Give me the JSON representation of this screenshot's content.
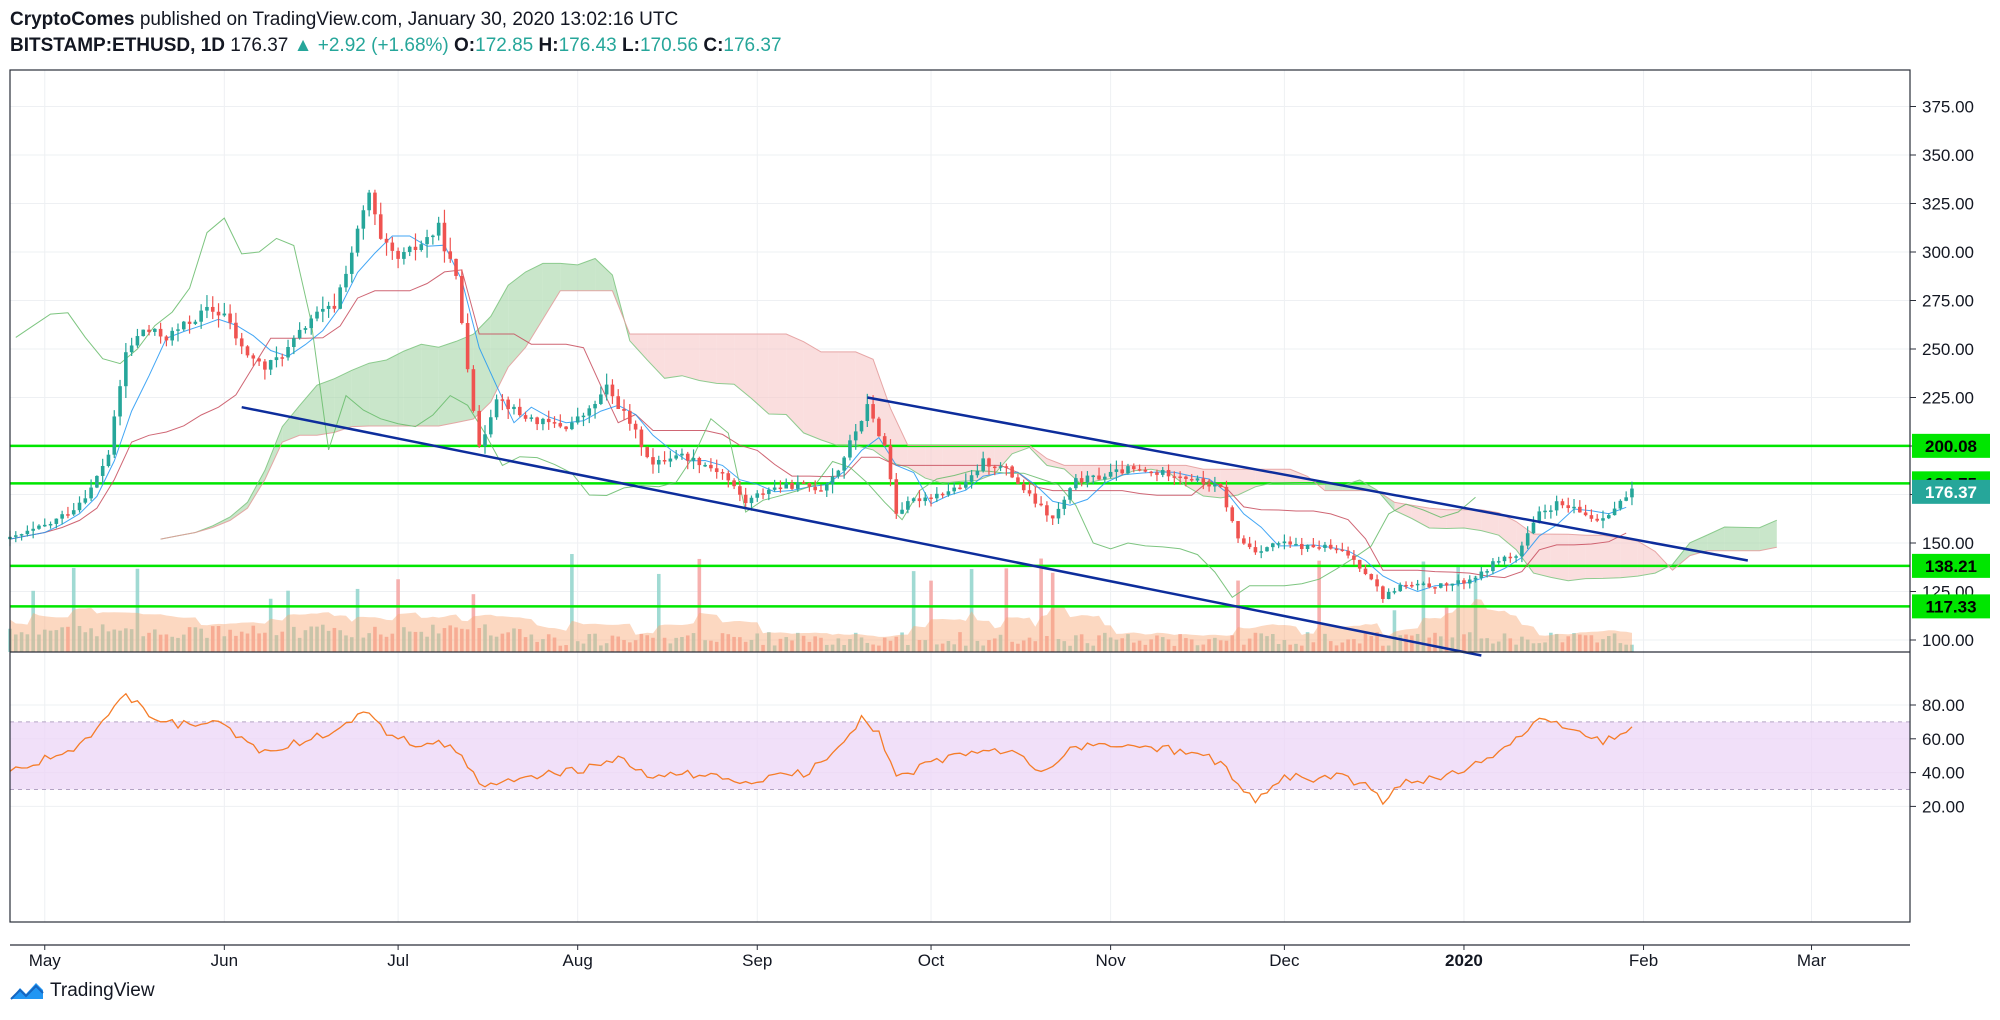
{
  "header": {
    "author": "CryptoComes",
    "published_text": "published on TradingView.com, January 30, 2020 13:02:16 UTC",
    "symbol": "BITSTAMP:ETHUSD, 1D",
    "last": "176.37",
    "change_arrow": "▲",
    "change": "+2.92 (+1.68%)",
    "o_label": "O:",
    "o": "172.85",
    "h_label": "H:",
    "h": "176.43",
    "l_label": "L:",
    "l": "170.56",
    "c_label": "C:",
    "c": "176.37"
  },
  "branding": {
    "logo_text": "TradingView",
    "logo_icon": "tradingview-logo-icon"
  },
  "colors": {
    "up": "#26a69a",
    "down": "#ef5350",
    "level": "#00e600",
    "channel": "#0d2d9c",
    "cloud_up": "#a5d6a7",
    "cloud_down": "#f7c8c8",
    "tenkan": "#2196f3",
    "kijun": "#c74b5c",
    "chikou": "#66bb6a",
    "volume": "#f9a875",
    "rsi": "#f57c28",
    "rsi_band": "#ecd6f7"
  },
  "chart_data": {
    "type": "candlestick",
    "price_axis": {
      "ticks": [
        "375.00",
        "350.00",
        "325.00",
        "300.00",
        "275.00",
        "250.00",
        "225.00",
        "200.00",
        "175.00",
        "150.00",
        "125.00",
        "100.00"
      ],
      "range": [
        85,
        385
      ]
    },
    "rsi_axis": {
      "ticks": [
        "80.00",
        "60.00",
        "40.00",
        "20.00"
      ],
      "range": [
        14,
        92
      ],
      "band": [
        30,
        70
      ]
    },
    "x_axis": {
      "labels": [
        "May",
        "Jun",
        "Jul",
        "Aug",
        "Sep",
        "Oct",
        "Nov",
        "Dec",
        "2020",
        "Feb",
        "Mar"
      ],
      "label_dates": [
        "2019-05-01",
        "2019-06-01",
        "2019-07-01",
        "2019-08-01",
        "2019-09-01",
        "2019-10-01",
        "2019-11-01",
        "2019-12-01",
        "2020-01-01",
        "2020-02-01",
        "2020-03-01"
      ],
      "range": [
        "2019-04-25",
        "2020-03-18"
      ]
    },
    "horizontal_levels": [
      {
        "value": 200.08,
        "label": "200.08"
      },
      {
        "value": 180.75,
        "label": "180.75"
      },
      {
        "value": 138.21,
        "label": "138.21"
      },
      {
        "value": 117.33,
        "label": "117.33"
      }
    ],
    "last_price_tag": {
      "value": 176.37,
      "label": "176.37"
    },
    "trend_lines": [
      {
        "from": [
          "2019-06-04",
          220
        ],
        "to": [
          "2020-01-04",
          92
        ]
      },
      {
        "from": [
          "2019-09-20",
          225
        ],
        "to": [
          "2020-02-19",
          141
        ]
      }
    ],
    "close": [
      [
        "2019-04-25",
        152
      ],
      [
        "2019-05-02",
        160
      ],
      [
        "2019-05-06",
        168
      ],
      [
        "2019-05-09",
        178
      ],
      [
        "2019-05-12",
        196
      ],
      [
        "2019-05-15",
        248
      ],
      [
        "2019-05-18",
        260
      ],
      [
        "2019-05-22",
        256
      ],
      [
        "2019-05-26",
        264
      ],
      [
        "2019-05-29",
        270
      ],
      [
        "2019-06-01",
        268
      ],
      [
        "2019-06-04",
        250
      ],
      [
        "2019-06-08",
        240
      ],
      [
        "2019-06-12",
        250
      ],
      [
        "2019-06-16",
        266
      ],
      [
        "2019-06-20",
        272
      ],
      [
        "2019-06-23",
        300
      ],
      [
        "2019-06-26",
        330
      ],
      [
        "2019-06-28",
        305
      ],
      [
        "2019-07-01",
        296
      ],
      [
        "2019-07-04",
        302
      ],
      [
        "2019-07-08",
        312
      ],
      [
        "2019-07-11",
        286
      ],
      [
        "2019-07-15",
        198
      ],
      [
        "2019-07-18",
        226
      ],
      [
        "2019-07-22",
        216
      ],
      [
        "2019-07-26",
        212
      ],
      [
        "2019-07-30",
        210
      ],
      [
        "2019-08-03",
        218
      ],
      [
        "2019-08-06",
        230
      ],
      [
        "2019-08-10",
        212
      ],
      [
        "2019-08-14",
        190
      ],
      [
        "2019-08-18",
        196
      ],
      [
        "2019-08-22",
        192
      ],
      [
        "2019-08-26",
        186
      ],
      [
        "2019-08-30",
        171
      ],
      [
        "2019-09-03",
        178
      ],
      [
        "2019-09-08",
        180
      ],
      [
        "2019-09-12",
        178
      ],
      [
        "2019-09-15",
        188
      ],
      [
        "2019-09-18",
        208
      ],
      [
        "2019-09-20",
        220
      ],
      [
        "2019-09-23",
        200
      ],
      [
        "2019-09-25",
        166
      ],
      [
        "2019-09-28",
        172
      ],
      [
        "2019-10-03",
        176
      ],
      [
        "2019-10-07",
        180
      ],
      [
        "2019-10-10",
        192
      ],
      [
        "2019-10-14",
        188
      ],
      [
        "2019-10-18",
        174
      ],
      [
        "2019-10-22",
        162
      ],
      [
        "2019-10-26",
        182
      ],
      [
        "2019-10-30",
        184
      ],
      [
        "2019-11-04",
        188
      ],
      [
        "2019-11-08",
        186
      ],
      [
        "2019-11-12",
        186
      ],
      [
        "2019-11-16",
        182
      ],
      [
        "2019-11-20",
        178
      ],
      [
        "2019-11-23",
        152
      ],
      [
        "2019-11-26",
        146
      ],
      [
        "2019-11-30",
        150
      ],
      [
        "2019-12-04",
        148
      ],
      [
        "2019-12-08",
        148
      ],
      [
        "2019-12-12",
        144
      ],
      [
        "2019-12-16",
        132
      ],
      [
        "2019-12-18",
        122
      ],
      [
        "2019-12-21",
        128
      ],
      [
        "2019-12-24",
        128
      ],
      [
        "2019-12-28",
        128
      ],
      [
        "2020-01-01",
        130
      ],
      [
        "2020-01-04",
        134
      ],
      [
        "2020-01-07",
        142
      ],
      [
        "2020-01-10",
        143
      ],
      [
        "2020-01-14",
        165
      ],
      [
        "2020-01-17",
        170
      ],
      [
        "2020-01-20",
        167
      ],
      [
        "2020-01-24",
        162
      ],
      [
        "2020-01-27",
        168
      ],
      [
        "2020-01-30",
        176.37
      ]
    ],
    "rsi": [
      [
        "2019-04-25",
        42
      ],
      [
        "2019-05-03",
        50
      ],
      [
        "2019-05-08",
        58
      ],
      [
        "2019-05-11",
        72
      ],
      [
        "2019-05-14",
        82
      ],
      [
        "2019-05-15",
        86
      ],
      [
        "2019-05-19",
        74
      ],
      [
        "2019-05-24",
        68
      ],
      [
        "2019-05-30",
        70
      ],
      [
        "2019-06-04",
        60
      ],
      [
        "2019-06-08",
        52
      ],
      [
        "2019-06-12",
        56
      ],
      [
        "2019-06-18",
        62
      ],
      [
        "2019-06-22",
        70
      ],
      [
        "2019-06-26",
        76
      ],
      [
        "2019-06-29",
        64
      ],
      [
        "2019-07-04",
        56
      ],
      [
        "2019-07-08",
        60
      ],
      [
        "2019-07-12",
        48
      ],
      [
        "2019-07-16",
        30
      ],
      [
        "2019-07-22",
        38
      ],
      [
        "2019-07-30",
        40
      ],
      [
        "2019-08-05",
        44
      ],
      [
        "2019-08-08",
        48
      ],
      [
        "2019-08-14",
        36
      ],
      [
        "2019-08-20",
        40
      ],
      [
        "2019-08-26",
        36
      ],
      [
        "2019-08-30",
        34
      ],
      [
        "2019-09-05",
        38
      ],
      [
        "2019-09-10",
        40
      ],
      [
        "2019-09-15",
        56
      ],
      [
        "2019-09-19",
        72
      ],
      [
        "2019-09-22",
        64
      ],
      [
        "2019-09-25",
        36
      ],
      [
        "2019-10-01",
        46
      ],
      [
        "2019-10-06",
        50
      ],
      [
        "2019-10-10",
        54
      ],
      [
        "2019-10-16",
        50
      ],
      [
        "2019-10-21",
        40
      ],
      [
        "2019-10-25",
        54
      ],
      [
        "2019-10-30",
        56
      ],
      [
        "2019-11-05",
        56
      ],
      [
        "2019-11-10",
        54
      ],
      [
        "2019-11-15",
        52
      ],
      [
        "2019-11-20",
        46
      ],
      [
        "2019-11-24",
        28
      ],
      [
        "2019-11-26",
        24
      ],
      [
        "2019-12-01",
        38
      ],
      [
        "2019-12-06",
        36
      ],
      [
        "2019-12-11",
        38
      ],
      [
        "2019-12-16",
        30
      ],
      [
        "2019-12-18",
        22
      ],
      [
        "2019-12-22",
        36
      ],
      [
        "2019-12-28",
        36
      ],
      [
        "2020-01-03",
        46
      ],
      [
        "2020-01-07",
        52
      ],
      [
        "2020-01-10",
        60
      ],
      [
        "2020-01-14",
        70
      ],
      [
        "2020-01-18",
        68
      ],
      [
        "2020-01-22",
        62
      ],
      [
        "2020-01-25",
        58
      ],
      [
        "2020-01-28",
        64
      ],
      [
        "2020-01-30",
        66
      ]
    ]
  }
}
